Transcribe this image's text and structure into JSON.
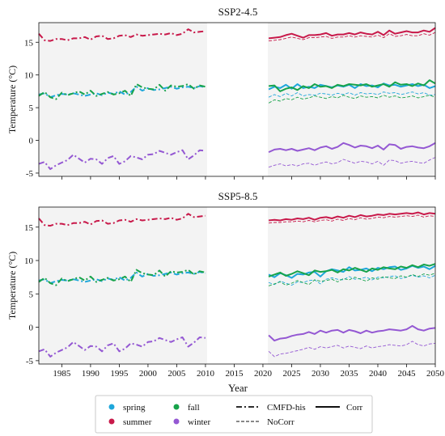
{
  "chart_data": {
    "type": "line",
    "xlabel": "Year",
    "ylabel": "Temperature (°C)",
    "xlim": [
      1981,
      2050
    ],
    "ylim": [
      -5.5,
      18
    ],
    "xticks": [
      1985,
      1990,
      1995,
      2000,
      2005,
      2010,
      2015,
      2020,
      2025,
      2030,
      2035,
      2040,
      2045,
      2050
    ],
    "yticks": [
      -5,
      0,
      5,
      10,
      15
    ],
    "shaded_periods": [
      [
        1981,
        2010
      ],
      [
        2021,
        2050
      ]
    ],
    "grid": false,
    "legend": {
      "placement": "bottom",
      "entries": [
        {
          "label": "spring",
          "kind": "marker",
          "color": "#1EA7DB"
        },
        {
          "label": "summer",
          "kind": "marker",
          "color": "#C8194A"
        },
        {
          "label": "fall",
          "kind": "marker",
          "color": "#17A34A"
        },
        {
          "label": "winter",
          "kind": "marker",
          "color": "#9458D3"
        },
        {
          "label": "CMFD-his",
          "kind": "line",
          "style": "dashdot"
        },
        {
          "label": "NoCorr",
          "kind": "line",
          "style": "dashed"
        },
        {
          "label": "Corr",
          "kind": "line",
          "style": "solid"
        }
      ]
    },
    "colors": {
      "spring": "#1EA7DB",
      "summer": "#C8194A",
      "fall": "#17A34A",
      "winter": "#9458D3"
    },
    "panels": [
      {
        "title": "SSP2-4.5",
        "series": [
          {
            "season": "summer",
            "kind": "CMFD-his",
            "start": 1981,
            "values": [
              16.3,
              15.3,
              15.2,
              15.5,
              15.5,
              15.3,
              15.6,
              15.6,
              15.8,
              15.4,
              15.9,
              16.0,
              15.5,
              15.6,
              16.0,
              16.1,
              15.8,
              16.2,
              16.0,
              16.1,
              16.2,
              16.3,
              16.2,
              16.4,
              16.1,
              16.3,
              17.0,
              16.5,
              16.6,
              16.7
            ]
          },
          {
            "season": "spring",
            "kind": "CMFD-his",
            "start": 1981,
            "values": [
              7.0,
              7.2,
              6.6,
              6.9,
              7.1,
              7.0,
              7.2,
              7.0,
              6.8,
              7.0,
              7.2,
              6.9,
              7.3,
              7.1,
              7.5,
              7.0,
              7.4,
              8.2,
              7.6,
              8.0,
              7.7,
              7.8,
              8.0,
              8.2,
              7.9,
              8.1,
              8.2,
              8.0,
              8.3,
              8.1
            ]
          },
          {
            "season": "fall",
            "kind": "CMFD-his",
            "start": 1981,
            "values": [
              6.8,
              7.4,
              6.6,
              6.3,
              7.3,
              6.9,
              7.2,
              7.5,
              7.0,
              7.6,
              6.8,
              7.1,
              7.4,
              7.0,
              7.2,
              7.6,
              6.8,
              8.6,
              8.1,
              7.9,
              7.8,
              8.5,
              7.6,
              8.4,
              8.2,
              8.3,
              8.6,
              7.9,
              8.4,
              8.2
            ]
          },
          {
            "season": "winter",
            "kind": "CMFD-his",
            "start": 1981,
            "values": [
              -3.6,
              -3.3,
              -4.4,
              -3.8,
              -3.4,
              -3.0,
              -2.2,
              -2.8,
              -3.4,
              -2.8,
              -2.9,
              -3.6,
              -2.7,
              -2.4,
              -3.6,
              -3.2,
              -2.4,
              -2.6,
              -2.9,
              -2.2,
              -2.1,
              -1.6,
              -1.9,
              -2.2,
              -1.8,
              -1.5,
              -2.9,
              -2.3,
              -1.5,
              -1.6
            ]
          },
          {
            "season": "summer",
            "kind": "Corr",
            "start": 2021,
            "values": [
              15.6,
              15.7,
              15.8,
              16.1,
              16.3,
              16.0,
              15.7,
              16.1,
              16.1,
              16.2,
              16.4,
              16.0,
              16.2,
              16.2,
              16.4,
              16.2,
              16.5,
              16.3,
              16.2,
              16.6,
              16.1,
              16.8,
              16.3,
              16.5,
              16.7,
              16.5,
              16.5,
              16.8,
              16.6,
              17.2
            ]
          },
          {
            "season": "summer",
            "kind": "NoCorr",
            "start": 2021,
            "values": [
              15.2,
              15.3,
              15.4,
              15.6,
              15.8,
              15.6,
              15.4,
              15.7,
              15.7,
              15.8,
              15.9,
              15.6,
              15.8,
              15.8,
              16.0,
              15.8,
              16.0,
              15.9,
              15.8,
              16.1,
              15.7,
              16.3,
              15.9,
              16.0,
              16.2,
              16.0,
              16.0,
              16.3,
              16.1,
              16.5
            ]
          },
          {
            "season": "spring",
            "kind": "Corr",
            "start": 2021,
            "values": [
              7.8,
              8.2,
              8.0,
              8.5,
              7.9,
              8.6,
              8.0,
              8.2,
              8.0,
              8.5,
              8.3,
              8.1,
              8.4,
              8.2,
              8.5,
              8.0,
              8.6,
              8.3,
              8.4,
              8.1,
              8.7,
              8.4,
              8.5,
              8.2,
              8.4,
              8.6,
              8.3,
              8.5,
              8.0,
              8.3
            ]
          },
          {
            "season": "fall",
            "kind": "Corr",
            "start": 2021,
            "values": [
              8.3,
              8.4,
              7.5,
              7.9,
              8.1,
              7.7,
              8.3,
              8.0,
              8.6,
              8.2,
              8.3,
              8.0,
              8.5,
              8.3,
              8.6,
              8.5,
              8.4,
              8.6,
              8.2,
              8.4,
              8.6,
              8.2,
              8.9,
              8.5,
              8.6,
              8.3,
              8.7,
              8.4,
              9.2,
              8.7
            ]
          },
          {
            "season": "spring",
            "kind": "NoCorr",
            "start": 2021,
            "values": [
              6.6,
              7.0,
              6.7,
              7.2,
              6.8,
              7.3,
              6.8,
              7.0,
              6.9,
              7.2,
              7.1,
              6.9,
              7.2,
              7.0,
              7.3,
              6.9,
              7.3,
              7.1,
              7.2,
              7.0,
              7.4,
              7.2,
              7.3,
              7.0,
              7.2,
              7.4,
              7.1,
              7.3,
              6.9,
              7.0
            ]
          },
          {
            "season": "fall",
            "kind": "NoCorr",
            "start": 2021,
            "values": [
              5.7,
              6.2,
              6.0,
              6.4,
              6.2,
              6.6,
              6.3,
              6.5,
              6.8,
              6.6,
              6.4,
              6.7,
              6.5,
              6.9,
              6.6,
              6.4,
              6.8,
              6.6,
              6.7,
              6.5,
              6.9,
              6.6,
              6.8,
              6.5,
              6.6,
              6.8,
              6.5,
              6.7,
              6.9,
              6.6
            ]
          },
          {
            "season": "winter",
            "kind": "Corr",
            "start": 2021,
            "values": [
              -1.8,
              -1.4,
              -1.3,
              -1.5,
              -1.3,
              -1.6,
              -1.4,
              -1.2,
              -1.5,
              -1.1,
              -0.9,
              -1.3,
              -1.0,
              -0.4,
              -0.7,
              -1.1,
              -0.8,
              -0.9,
              -1.2,
              -0.8,
              -1.4,
              -0.6,
              -0.7,
              -1.3,
              -1.0,
              -0.9,
              -1.1,
              -1.2,
              -0.9,
              -0.4
            ]
          },
          {
            "season": "winter",
            "kind": "NoCorr",
            "start": 2021,
            "values": [
              -4.1,
              -3.8,
              -3.6,
              -3.9,
              -3.7,
              -3.9,
              -3.6,
              -3.5,
              -3.8,
              -3.5,
              -3.3,
              -3.6,
              -3.4,
              -2.9,
              -3.2,
              -3.5,
              -3.2,
              -3.3,
              -3.6,
              -3.2,
              -3.8,
              -3.0,
              -3.1,
              -3.5,
              -3.3,
              -3.2,
              -3.4,
              -3.5,
              -3.0,
              -2.6
            ]
          }
        ]
      },
      {
        "title": "SSP5-8.5",
        "series": [
          {
            "season": "summer",
            "kind": "CMFD-his",
            "start": 1981,
            "values": [
              16.3,
              15.3,
              15.2,
              15.5,
              15.5,
              15.3,
              15.6,
              15.6,
              15.8,
              15.4,
              15.9,
              16.0,
              15.5,
              15.6,
              16.0,
              16.1,
              15.8,
              16.2,
              16.0,
              16.1,
              16.2,
              16.3,
              16.2,
              16.4,
              16.1,
              16.3,
              17.0,
              16.5,
              16.6,
              16.7
            ]
          },
          {
            "season": "spring",
            "kind": "CMFD-his",
            "start": 1981,
            "values": [
              7.0,
              7.2,
              6.6,
              6.9,
              7.1,
              7.0,
              7.2,
              7.0,
              6.8,
              7.0,
              7.2,
              6.9,
              7.3,
              7.1,
              7.5,
              7.0,
              7.4,
              8.2,
              7.6,
              8.0,
              7.7,
              7.8,
              8.0,
              8.2,
              7.9,
              8.1,
              8.2,
              8.0,
              8.3,
              8.1
            ]
          },
          {
            "season": "fall",
            "kind": "CMFD-his",
            "start": 1981,
            "values": [
              6.8,
              7.4,
              6.6,
              6.3,
              7.3,
              6.9,
              7.2,
              7.5,
              7.0,
              7.6,
              6.8,
              7.1,
              7.4,
              7.0,
              7.2,
              7.6,
              6.8,
              8.6,
              8.1,
              7.9,
              7.8,
              8.5,
              7.6,
              8.4,
              8.2,
              8.3,
              8.6,
              7.9,
              8.4,
              8.2
            ]
          },
          {
            "season": "winter",
            "kind": "CMFD-his",
            "start": 1981,
            "values": [
              -3.6,
              -3.3,
              -4.4,
              -3.8,
              -3.4,
              -3.0,
              -2.2,
              -2.8,
              -3.4,
              -2.8,
              -2.9,
              -3.6,
              -2.7,
              -2.4,
              -3.6,
              -3.2,
              -2.4,
              -2.6,
              -2.9,
              -2.2,
              -2.1,
              -1.6,
              -1.9,
              -2.2,
              -1.8,
              -1.5,
              -2.9,
              -2.3,
              -1.5,
              -1.6
            ]
          },
          {
            "season": "summer",
            "kind": "Corr",
            "start": 2021,
            "values": [
              16.0,
              16.1,
              16.0,
              16.2,
              16.1,
              16.3,
              16.2,
              16.4,
              16.1,
              16.4,
              16.5,
              16.3,
              16.6,
              16.4,
              16.7,
              16.5,
              16.8,
              16.6,
              16.7,
              16.9,
              16.8,
              17.0,
              16.9,
              17.0,
              17.1,
              17.0,
              17.2,
              16.9,
              17.1,
              17.0
            ]
          },
          {
            "season": "summer",
            "kind": "NoCorr",
            "start": 2021,
            "values": [
              15.6,
              15.7,
              15.7,
              15.8,
              15.8,
              15.9,
              15.8,
              16.0,
              15.8,
              16.0,
              16.1,
              15.9,
              16.2,
              16.0,
              16.3,
              16.1,
              16.4,
              16.2,
              16.3,
              16.5,
              16.4,
              16.6,
              16.5,
              16.6,
              16.7,
              16.6,
              16.8,
              16.5,
              16.7,
              16.6
            ]
          },
          {
            "season": "spring",
            "kind": "Corr",
            "start": 2021,
            "values": [
              7.9,
              7.5,
              8.1,
              7.8,
              7.4,
              8.0,
              7.9,
              8.2,
              8.3,
              7.6,
              8.4,
              8.7,
              8.5,
              8.3,
              9.0,
              8.5,
              8.6,
              8.8,
              8.4,
              8.9,
              8.7,
              9.0,
              9.1,
              8.6,
              8.8,
              9.2,
              8.9,
              9.1,
              8.7,
              9.2
            ]
          },
          {
            "season": "fall",
            "kind": "Corr",
            "start": 2021,
            "values": [
              7.6,
              7.9,
              8.2,
              7.7,
              8.0,
              8.4,
              8.1,
              7.8,
              8.5,
              8.3,
              8.4,
              8.6,
              8.2,
              8.7,
              8.5,
              8.9,
              8.6,
              8.3,
              8.8,
              8.6,
              9.0,
              8.8,
              8.7,
              9.1,
              8.9,
              9.3,
              9.0,
              9.4,
              9.2,
              9.5
            ]
          },
          {
            "season": "spring",
            "kind": "NoCorr",
            "start": 2021,
            "values": [
              6.7,
              6.4,
              6.9,
              6.6,
              6.3,
              6.8,
              6.7,
              7.0,
              7.1,
              6.5,
              7.2,
              7.4,
              7.2,
              7.1,
              7.6,
              7.2,
              7.3,
              7.5,
              7.1,
              7.5,
              7.4,
              7.6,
              7.7,
              7.3,
              7.5,
              7.8,
              7.5,
              7.7,
              7.4,
              7.8
            ]
          },
          {
            "season": "fall",
            "kind": "NoCorr",
            "start": 2021,
            "values": [
              6.2,
              6.5,
              6.8,
              6.3,
              6.6,
              7.0,
              6.7,
              6.4,
              7.1,
              6.9,
              7.0,
              7.2,
              6.8,
              7.3,
              7.1,
              7.5,
              7.2,
              6.9,
              7.4,
              7.2,
              7.6,
              7.4,
              7.3,
              7.7,
              7.5,
              7.9,
              7.6,
              8.0,
              7.8,
              8.1
            ]
          },
          {
            "season": "winter",
            "kind": "Corr",
            "start": 2021,
            "values": [
              -1.2,
              -2.0,
              -1.7,
              -1.6,
              -1.3,
              -1.1,
              -1.0,
              -0.7,
              -1.0,
              -0.5,
              -0.8,
              -0.5,
              -0.4,
              -0.8,
              -0.4,
              -0.6,
              -0.9,
              -0.5,
              -0.8,
              -0.6,
              -0.5,
              -0.3,
              -0.4,
              -0.5,
              -0.3,
              0.2,
              -0.3,
              -0.5,
              -0.2,
              -0.1
            ]
          },
          {
            "season": "winter",
            "kind": "NoCorr",
            "start": 2021,
            "values": [
              -3.6,
              -4.4,
              -4.0,
              -3.9,
              -3.7,
              -3.5,
              -3.3,
              -3.0,
              -3.3,
              -2.9,
              -3.1,
              -2.9,
              -2.7,
              -3.1,
              -2.8,
              -3.0,
              -3.2,
              -2.8,
              -3.1,
              -2.9,
              -2.8,
              -2.6,
              -2.7,
              -2.8,
              -2.6,
              -2.1,
              -2.6,
              -2.8,
              -2.5,
              -2.4
            ]
          }
        ]
      }
    ]
  }
}
